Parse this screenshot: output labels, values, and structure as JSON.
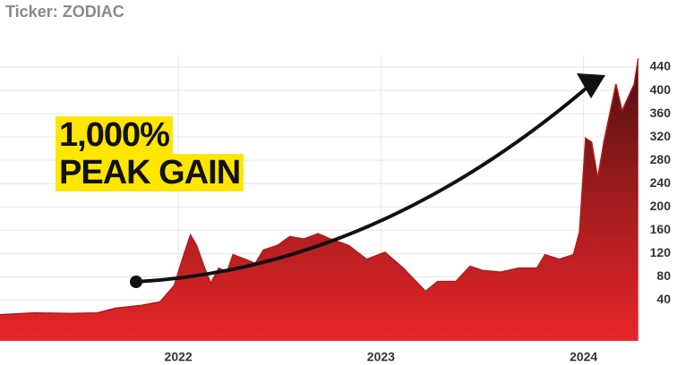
{
  "chart_data": {
    "type": "area",
    "title": "Ticker: ZODIAC",
    "annotations": [
      "1,000%",
      "PEAK GAIN"
    ],
    "x": [
      2021.12,
      2021.29,
      2021.47,
      2021.6,
      2021.69,
      2021.82,
      2021.91,
      2021.98,
      2022.02,
      2022.06,
      2022.09,
      2022.13,
      2022.16,
      2022.2,
      2022.24,
      2022.27,
      2022.33,
      2022.38,
      2022.42,
      2022.49,
      2022.55,
      2022.62,
      2022.69,
      2022.75,
      2022.84,
      2022.93,
      2023.02,
      2023.11,
      2023.22,
      2023.28,
      2023.37,
      2023.44,
      2023.5,
      2023.59,
      2023.68,
      2023.77,
      2023.81,
      2023.88,
      2023.95,
      2023.98,
      2024.01,
      2024.04,
      2024.07,
      2024.1,
      2024.16,
      2024.19,
      2024.22,
      2024.25,
      2024.27
    ],
    "series": [
      {
        "name": "ZODIAC",
        "color": "#b01c1c",
        "values": [
          15,
          18,
          17,
          18,
          26,
          31,
          37,
          65,
          110,
          152,
          134,
          95,
          69,
          95,
          88,
          118,
          110,
          103,
          126,
          134,
          149,
          145,
          154,
          145,
          134,
          110,
          122,
          95,
          55,
          72,
          72,
          98,
          91,
          88,
          95,
          95,
          118,
          110,
          118,
          157,
          318,
          311,
          249,
          311,
          411,
          365,
          388,
          411,
          455
        ]
      }
    ],
    "xlim": [
      2021.12,
      2024.28
    ],
    "xticks": [
      2022,
      2023,
      2024
    ],
    "ylim": [
      -30,
      460
    ],
    "yticks": [
      40,
      80,
      120,
      160,
      200,
      240,
      280,
      320,
      360,
      400,
      440
    ],
    "grid": true
  }
}
